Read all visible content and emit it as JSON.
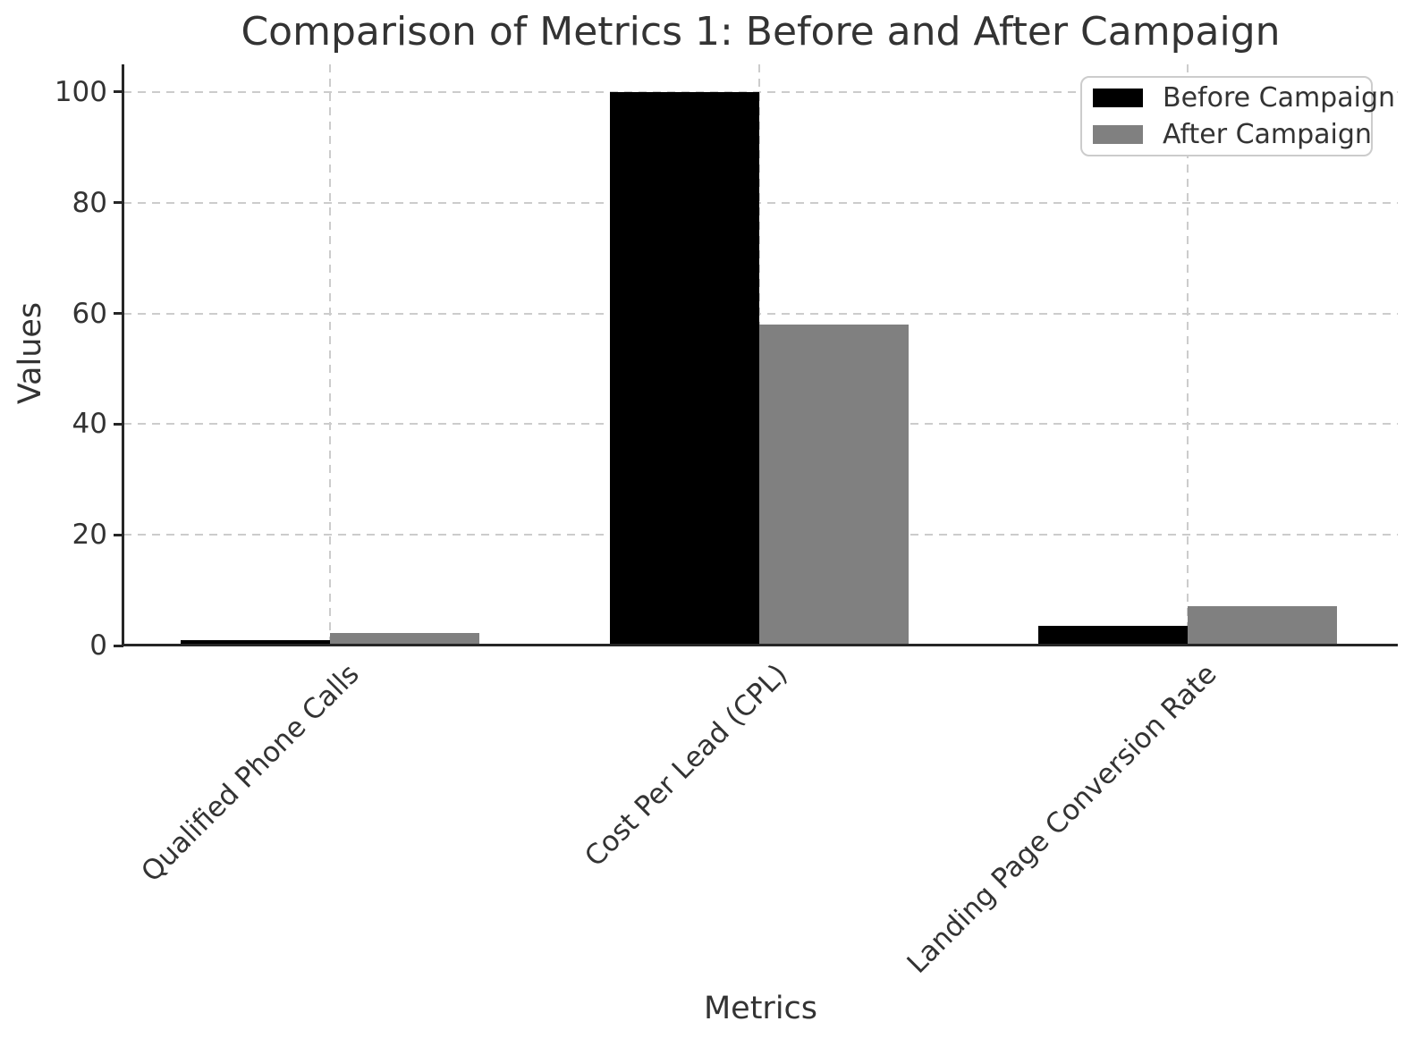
{
  "chart_data": {
    "type": "bar",
    "title": "Comparison of Metrics 1: Before and After Campaign",
    "xlabel": "Metrics",
    "ylabel": "Values",
    "categories": [
      "Qualified Phone Calls",
      "Cost Per Lead (CPL)",
      "Landing Page Conversion Rate"
    ],
    "series": [
      {
        "name": "Before Campaign",
        "color": "#000000",
        "values": [
          0.9,
          100,
          3.6
        ]
      },
      {
        "name": "After Campaign",
        "color": "#808080",
        "values": [
          2.2,
          58,
          7.1
        ]
      }
    ],
    "yticks": [
      0,
      20,
      40,
      60,
      80,
      100
    ],
    "ylim": [
      0,
      105
    ],
    "bar_width_fraction": 0.35,
    "grid": "dashed horizontal and vertical",
    "legend_position": "upper right"
  },
  "colors": {
    "background": "#ffffff",
    "text": "#333333",
    "spine": "#262626",
    "gridline": "#cccccc",
    "bar_before": "#000000",
    "bar_after": "#808080"
  }
}
